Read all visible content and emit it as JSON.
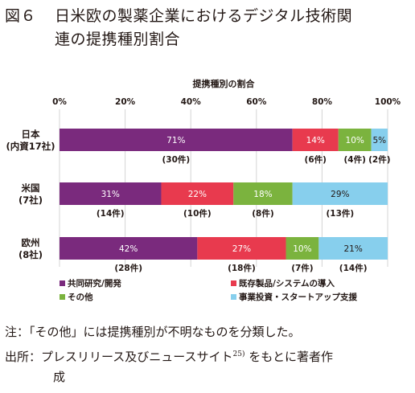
{
  "figure": {
    "number": "図６",
    "title_line1": "日米欧の製薬企業におけるデジタル技術関",
    "title_line2": "連の提携種別割合"
  },
  "chart_data": {
    "type": "bar",
    "orientation": "horizontal",
    "stacked": true,
    "percent_stacked": true,
    "title": "提携種別の割合",
    "xlim": [
      0,
      100
    ],
    "x_ticks": [
      "0%",
      "20%",
      "40%",
      "60%",
      "80%",
      "100%"
    ],
    "grid": true,
    "legend_placement": "bottom",
    "categories": [
      {
        "label_line1": "日本",
        "label_line2": "(内資17社)"
      },
      {
        "label_line1": "米国",
        "label_line2": "(7社)"
      },
      {
        "label_line1": "欧州",
        "label_line2": "(8社)"
      }
    ],
    "series": [
      {
        "name": "共同研究/開発",
        "color": "#7a2a7d",
        "values": [
          71,
          31,
          42
        ],
        "labels": [
          "71%",
          "31%",
          "42%"
        ],
        "counts": [
          "(30件)",
          "(14件)",
          "(28件)"
        ]
      },
      {
        "name": "既存製品/システムの導入",
        "color": "#e83a4e",
        "values": [
          14,
          22,
          27
        ],
        "labels": [
          "14%",
          "22%",
          "27%"
        ],
        "counts": [
          "(6件)",
          "(10件)",
          "(18件)"
        ]
      },
      {
        "name": "その他",
        "color": "#7bb33e",
        "values": [
          10,
          18,
          10
        ],
        "labels": [
          "10%",
          "18%",
          "10%"
        ],
        "counts": [
          "(4件)",
          "(8件)",
          "(7件)"
        ]
      },
      {
        "name": "事業投資・スタートアップ支援",
        "color": "#87cfed",
        "values": [
          5,
          29,
          21
        ],
        "labels": [
          "5%",
          "29%",
          "21%"
        ],
        "counts": [
          "(2件)",
          "(13件)",
          "(14件)"
        ]
      }
    ]
  },
  "notes": {
    "note_label": "注：",
    "note_text": "「その他」には提携種別が不明なものを分類した。",
    "source_label": "出所：",
    "source_text_before": "プレスリリース及びニュースサイト",
    "source_sup": "25)",
    "source_text_after": "をもとに著者作",
    "source_text_line2": "成"
  }
}
